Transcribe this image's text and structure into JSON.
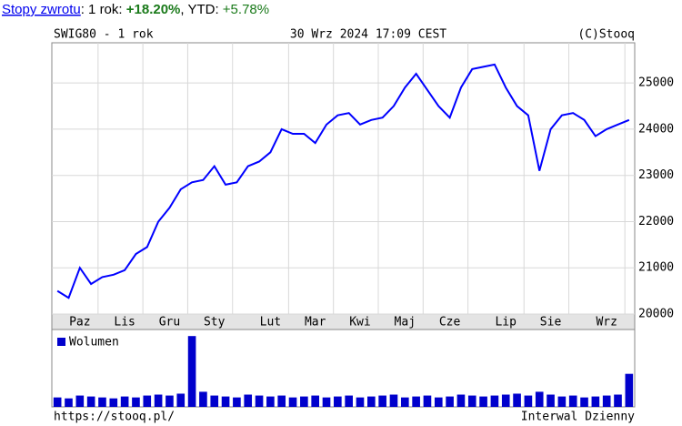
{
  "header": {
    "link": "Stopy zwrotu",
    "label_1y": ": 1 rok: ",
    "value_1y": "+18.20%",
    "label_ytd": ", YTD: ",
    "value_ytd": "+5.78%"
  },
  "chart_data": [
    {
      "type": "line",
      "title": "SWIG80 - 1 rok",
      "subtitle": "30 Wrz 2024 17:09 CEST",
      "source": "(C)Stooq",
      "categories": [
        null,
        null,
        "Paz",
        null,
        null,
        null,
        "Lis",
        null,
        null,
        null,
        "Gru",
        null,
        null,
        null,
        "Sty",
        null,
        null,
        null,
        null,
        "Lut",
        null,
        null,
        null,
        "Mar",
        null,
        null,
        null,
        "Kwi",
        null,
        null,
        null,
        "Maj",
        null,
        null,
        null,
        "Cze",
        null,
        null,
        null,
        null,
        "Lip",
        null,
        null,
        null,
        "Sie",
        null,
        null,
        null,
        null,
        "Wrz",
        null,
        null
      ],
      "series": [
        {
          "color": "#0000ff",
          "values": [
            20500,
            20350,
            21000,
            20650,
            20800,
            20850,
            20950,
            21300,
            21450,
            22000,
            22300,
            22700,
            22850,
            22900,
            23200,
            22800,
            22850,
            23200,
            23300,
            23500,
            24000,
            23900,
            23900,
            23700,
            24100,
            24300,
            24350,
            24100,
            24200,
            24250,
            24500,
            24900,
            25200,
            24850,
            24500,
            24250,
            24900,
            25300,
            25350,
            25400,
            24900,
            24500,
            24300,
            23100,
            24000,
            24300,
            24350,
            24200,
            23850,
            24000,
            24100,
            24200
          ]
        }
      ],
      "ylim": [
        20000,
        25870
      ],
      "yticks": [
        20000,
        21000,
        22000,
        23000,
        24000,
        25000
      ],
      "grid": true
    },
    {
      "type": "bar",
      "legend": "Wolumen",
      "color": "#0000cc",
      "values": [
        10,
        9,
        12,
        11,
        10,
        9,
        11,
        10,
        12,
        13,
        12,
        14,
        75,
        16,
        12,
        11,
        10,
        13,
        12,
        11,
        12,
        10,
        11,
        12,
        10,
        11,
        12,
        10,
        11,
        12,
        13,
        10,
        11,
        12,
        10,
        11,
        13,
        12,
        11,
        12,
        13,
        14,
        12,
        16,
        13,
        11,
        12,
        10,
        11,
        12,
        13,
        35
      ],
      "ylim": [
        0,
        80
      ]
    }
  ],
  "footer": {
    "url": "https://stooq.pl/",
    "interval": "Interwal Dzienny"
  }
}
